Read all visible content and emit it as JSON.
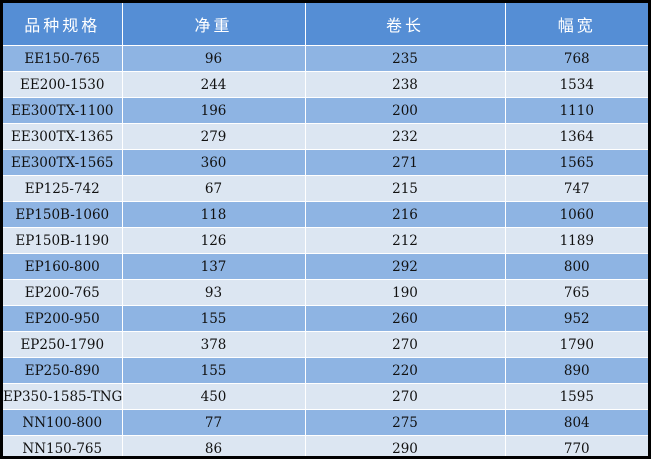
{
  "colors": {
    "header": "#558ED5",
    "row_odd": "#8EB4E3",
    "row_even": "#DCE6F2"
  },
  "headers": [
    "品种规格",
    "净重",
    "卷长",
    "幅宽"
  ],
  "rows": [
    [
      "EE150-765",
      "96",
      "235",
      "768"
    ],
    [
      "EE200-1530",
      "244",
      "238",
      "1534"
    ],
    [
      "EE300TX-1100",
      "196",
      "200",
      "1110"
    ],
    [
      "EE300TX-1365",
      "279",
      "232",
      "1364"
    ],
    [
      "EE300TX-1565",
      "360",
      "271",
      "1565"
    ],
    [
      "EP125-742",
      "67",
      "215",
      "747"
    ],
    [
      "EP150B-1060",
      "118",
      "216",
      "1060"
    ],
    [
      "EP150B-1190",
      "126",
      "212",
      "1189"
    ],
    [
      "EP160-800",
      "137",
      "292",
      "800"
    ],
    [
      "EP200-765",
      "93",
      "190",
      "765"
    ],
    [
      "EP200-950",
      "155",
      "260",
      "952"
    ],
    [
      "EP250-1790",
      "378",
      "270",
      "1790"
    ],
    [
      "EP250-890",
      "155",
      "220",
      "890"
    ],
    [
      "EP350-1585-TNG",
      "450",
      "270",
      "1595"
    ],
    [
      "NN100-800",
      "77",
      "275",
      "804"
    ],
    [
      "NN150-765",
      "86",
      "290",
      "770"
    ]
  ]
}
